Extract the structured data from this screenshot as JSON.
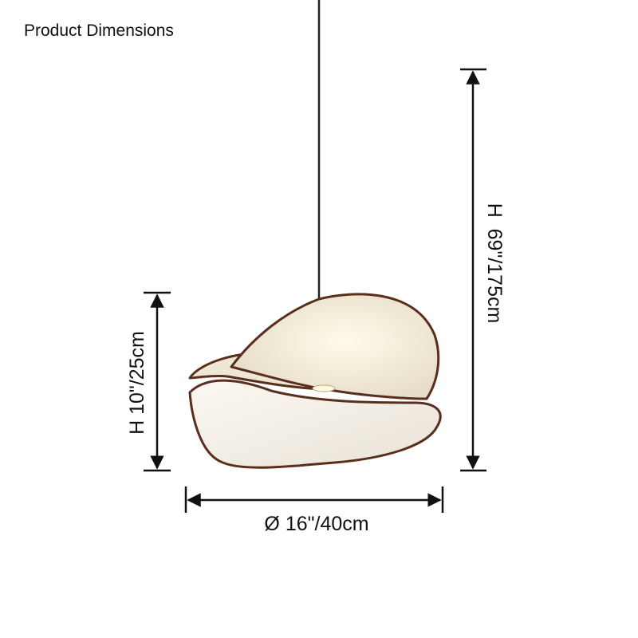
{
  "header": {
    "title": "Product Dimensions"
  },
  "dimensions": {
    "shade_height": "H 10\"/25cm",
    "diameter": "Ø 16\"/40cm",
    "total_height": "H  69\"/175cm"
  }
}
